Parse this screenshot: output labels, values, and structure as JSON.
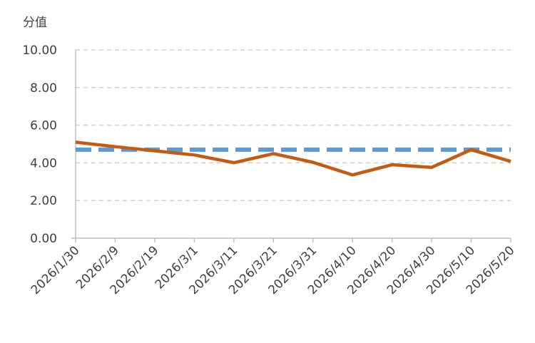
{
  "chart_data": {
    "type": "line",
    "ylabel": "分值",
    "ylim": [
      0,
      10
    ],
    "y_ticks": [
      "0.00",
      "2.00",
      "4.00",
      "6.00",
      "8.00",
      "10.00"
    ],
    "x_ticks": [
      "2026/1/30",
      "2026/2/9",
      "2026/2/19",
      "2026/3/1",
      "2026/3/11",
      "2026/3/21",
      "2026/3/31",
      "2026/4/10",
      "2026/4/20",
      "2026/4/30",
      "2026/5/10",
      "2026/5/20"
    ],
    "grid": true,
    "series": [
      {
        "color": "#C55A11",
        "style": "solid",
        "values": [
          5.1,
          4.86,
          4.64,
          4.42,
          4.01,
          4.49,
          4.03,
          3.36,
          3.9,
          3.76,
          4.7,
          4.08
        ]
      },
      {
        "color": "#5B9BD5",
        "style": "dashed",
        "values": [
          4.7,
          4.7,
          4.7,
          4.7,
          4.7,
          4.7,
          4.7,
          4.7,
          4.7,
          4.7,
          4.7,
          4.7
        ]
      }
    ]
  }
}
